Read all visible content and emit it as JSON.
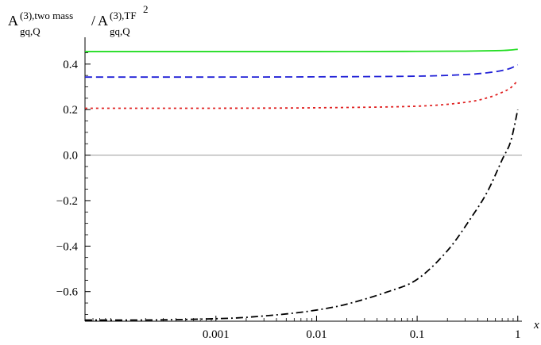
{
  "chart_data": {
    "type": "line",
    "title": "",
    "xlabel": "x",
    "ylabel": {
      "base": "A",
      "num_sup": "(3),two mass",
      "num_sub": "gq,Q",
      "slash": "/",
      "den_sup": "(3),TF",
      "den_sub": "gq,Q",
      "den_power": "2"
    },
    "xscale": "log",
    "xlim": [
      5e-05,
      1.1
    ],
    "ylim": [
      -0.73,
      0.49
    ],
    "x_ticks": [
      {
        "value": 0.001,
        "label": "0.001"
      },
      {
        "value": 0.01,
        "label": "0.01"
      },
      {
        "value": 0.1,
        "label": "0.1"
      },
      {
        "value": 1,
        "label": "1"
      }
    ],
    "y_ticks": [
      {
        "value": 0.4,
        "label": "0.4"
      },
      {
        "value": 0.2,
        "label": "0.2"
      },
      {
        "value": 0.0,
        "label": "0.0"
      },
      {
        "value": -0.2,
        "label": "−0.2"
      },
      {
        "value": -0.4,
        "label": "−0.4"
      },
      {
        "value": -0.6,
        "label": "−0.6"
      }
    ],
    "zero_line": true,
    "grid": false,
    "series": [
      {
        "color": "#22dd22",
        "dash": "solid",
        "x": [
          5e-05,
          0.0001,
          0.001,
          0.01,
          0.1,
          0.3,
          0.6,
          0.8,
          1.0
        ],
        "y": [
          0.455,
          0.455,
          0.455,
          0.455,
          0.456,
          0.457,
          0.459,
          0.461,
          0.465
        ]
      },
      {
        "color": "#1f1fd6",
        "dash": "dashed",
        "x": [
          5e-05,
          0.0001,
          0.001,
          0.01,
          0.1,
          0.3,
          0.5,
          0.7,
          0.85,
          1.0
        ],
        "y": [
          0.343,
          0.343,
          0.343,
          0.344,
          0.347,
          0.354,
          0.362,
          0.372,
          0.382,
          0.397
        ]
      },
      {
        "color": "#e02020",
        "dash": "dotted",
        "x": [
          5e-05,
          0.0001,
          0.001,
          0.01,
          0.1,
          0.3,
          0.5,
          0.7,
          0.85,
          1.0
        ],
        "y": [
          0.206,
          0.206,
          0.206,
          0.208,
          0.215,
          0.232,
          0.252,
          0.276,
          0.296,
          0.328
        ]
      },
      {
        "color": "#000000",
        "dash": "dashdot",
        "x": [
          5e-05,
          0.0001,
          0.0003,
          0.001,
          0.002,
          0.005,
          0.01,
          0.02,
          0.05,
          0.1,
          0.2,
          0.35,
          0.5,
          0.7,
          0.85,
          1.0
        ],
        "y": [
          -0.725,
          -0.725,
          -0.724,
          -0.719,
          -0.713,
          -0.698,
          -0.681,
          -0.655,
          -0.602,
          -0.546,
          -0.42,
          -0.27,
          -0.16,
          -0.02,
          0.06,
          0.2
        ]
      }
    ]
  }
}
